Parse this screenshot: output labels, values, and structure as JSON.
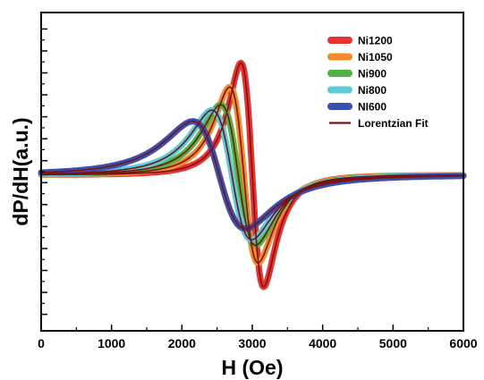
{
  "chart_data": {
    "type": "line",
    "xlabel": "H (Oe)",
    "ylabel": "dP/dH(a.u.)",
    "xlim": [
      0,
      6000
    ],
    "ylim": [
      -1.45,
      1.45
    ],
    "x_ticks": [
      0,
      1000,
      2000,
      3000,
      4000,
      5000,
      6000
    ],
    "y_tick_labels": false,
    "grid": false,
    "legend_position": "top-right",
    "fit_label": "Lorentzian Fit",
    "fit_color": "#7a1212",
    "series": [
      {
        "name": "Ni1200",
        "color": "#e8322f",
        "h0": 3000,
        "width": 280,
        "amplitude": 1.21
      },
      {
        "name": "Ni1050",
        "color": "#f28c2a",
        "h0": 2880,
        "width": 350,
        "amplitude": 0.95
      },
      {
        "name": "Ni900",
        "color": "#4fb443",
        "h0": 2800,
        "width": 430,
        "amplitude": 0.76
      },
      {
        "name": "Ni800",
        "color": "#5ccbd8",
        "h0": 2710,
        "width": 490,
        "amplitude": 0.7
      },
      {
        "name": "NI600",
        "color": "#3a4fb0",
        "h0": 2530,
        "width": 650,
        "amplitude": 0.58
      }
    ]
  }
}
